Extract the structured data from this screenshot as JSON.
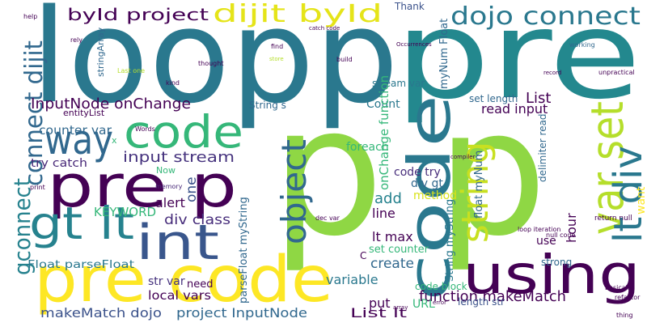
{
  "words": [
    {
      "text": "loopp",
      "color": "#2a788e"
    },
    {
      "text": "pre",
      "color": "#23888e"
    },
    {
      "text": "p",
      "color": "#8fd744"
    },
    {
      "text": "p",
      "color": "#8fd744"
    },
    {
      "text": "code",
      "color": "#2a788e"
    },
    {
      "text": "pre code",
      "color": "#fde725"
    },
    {
      "text": "pre p",
      "color": "#440154"
    },
    {
      "text": "using",
      "color": "#440154"
    },
    {
      "text": "int",
      "color": "#39568c"
    },
    {
      "text": "code",
      "color": "#35b779"
    },
    {
      "text": "way",
      "color": "#31688e"
    },
    {
      "text": "gt lt",
      "color": "#26828e"
    },
    {
      "text": "var set",
      "color": "#b5de2b"
    },
    {
      "text": "lt div",
      "color": "#2a788e"
    },
    {
      "text": "object",
      "color": "#31688e"
    },
    {
      "text": "string",
      "color": "#c8e020"
    },
    {
      "text": "dojo connect",
      "color": "#2a788e"
    },
    {
      "text": "dijit byId",
      "color": "#e5e419"
    },
    {
      "text": "byId project",
      "color": "#440154"
    },
    {
      "text": "connect dijit",
      "color": "#31688e"
    },
    {
      "text": "gconnect",
      "color": "#26828e"
    },
    {
      "text": "InputNode onChange",
      "color": "#440154"
    },
    {
      "text": "input stream",
      "color": "#46337e"
    },
    {
      "text": "function makeMatch",
      "color": "#440154"
    },
    {
      "text": "makeMatch dojo",
      "color": "#3b528b"
    },
    {
      "text": "project InputNode",
      "color": "#31688e"
    },
    {
      "text": "List lt",
      "color": "#440154"
    },
    {
      "text": "URL",
      "color": "#35b779"
    },
    {
      "text": "KEYWORD",
      "color": "#35b779"
    },
    {
      "text": "div class",
      "color": "#472d7b"
    },
    {
      "text": "alert",
      "color": "#440154"
    },
    {
      "text": "one",
      "color": "#3b528b"
    },
    {
      "text": "Float parseFloat",
      "color": "#2a788e"
    },
    {
      "text": "str var",
      "color": "#46327e"
    },
    {
      "text": "local vars",
      "color": "#440154"
    },
    {
      "text": "variable",
      "color": "#2a788e"
    },
    {
      "text": "put",
      "color": "#440154"
    },
    {
      "text": "create",
      "color": "#31688e"
    },
    {
      "text": "lt max",
      "color": "#440154"
    },
    {
      "text": "line",
      "color": "#440154"
    },
    {
      "text": "add",
      "color": "#26828e"
    },
    {
      "text": "code try",
      "color": "#472d7b"
    },
    {
      "text": "read input",
      "color": "#440154"
    },
    {
      "text": "List",
      "color": "#440154"
    },
    {
      "text": "counter var",
      "color": "#31688e"
    },
    {
      "text": "try catch",
      "color": "#482878"
    },
    {
      "text": "Count",
      "color": "#2a788e"
    },
    {
      "text": "foreach",
      "color": "#35b779"
    },
    {
      "text": "method",
      "color": "#d8e219"
    },
    {
      "text": "Thank",
      "color": "#3b528b"
    },
    {
      "text": "code block",
      "color": "#35b779"
    },
    {
      "text": "hour",
      "color": "#440154"
    },
    {
      "text": "strong",
      "color": "#31688e"
    },
    {
      "text": "use",
      "color": "#440154"
    },
    {
      "text": "need",
      "color": "#440154"
    },
    {
      "text": "String s",
      "color": "#31688e"
    },
    {
      "text": "Now",
      "color": "#35b779"
    },
    {
      "text": "entityList",
      "color": "#440154"
    },
    {
      "text": "div gt",
      "color": "#31688e"
    },
    {
      "text": "set counter",
      "color": "#35b779"
    },
    {
      "text": "stream var",
      "color": "#2a788e"
    },
    {
      "text": "set length",
      "color": "#31688e"
    },
    {
      "text": "String myString",
      "color": "#2a788e"
    },
    {
      "text": "parseFloat myString",
      "color": "#31688e"
    },
    {
      "text": "length str",
      "color": "#3b528b"
    },
    {
      "text": "want",
      "color": "#fde725"
    },
    {
      "text": "return null",
      "color": "#440154"
    },
    {
      "text": "onChange function",
      "color": "#35b779"
    },
    {
      "text": "myNum Float",
      "color": "#31688e"
    },
    {
      "text": "float myNum",
      "color": "#31688e"
    },
    {
      "text": "delimiter read",
      "color": "#31688e"
    },
    {
      "text": "stringArray",
      "color": "#31688e"
    },
    {
      "text": "memory",
      "color": "#482878"
    },
    {
      "text": "catch code",
      "color": "#440154"
    },
    {
      "text": "Occurrences",
      "color": "#440154"
    },
    {
      "text": "build",
      "color": "#440154"
    },
    {
      "text": "store",
      "color": "#b5de2b"
    },
    {
      "text": "thought",
      "color": "#440154"
    },
    {
      "text": "Last one",
      "color": "#b5de2b"
    },
    {
      "text": "working",
      "color": "#31688e"
    },
    {
      "text": "unpractical",
      "color": "#440154"
    },
    {
      "text": "dec var",
      "color": "#440154"
    },
    {
      "text": "null code",
      "color": "#440154"
    },
    {
      "text": "loop iteration",
      "color": "#440154"
    },
    {
      "text": "array",
      "color": "#440154"
    },
    {
      "text": "Words",
      "color": "#440154"
    },
    {
      "text": "help",
      "color": "#440154"
    },
    {
      "text": "rely",
      "color": "#440154"
    },
    {
      "text": "print",
      "color": "#440154"
    },
    {
      "text": "thing",
      "color": "#440154"
    },
    {
      "text": "refactor",
      "color": "#440154"
    },
    {
      "text": "basically",
      "color": "#440154"
    },
    {
      "text": "x",
      "color": "#35b779"
    },
    {
      "text": "C",
      "color": "#440154"
    },
    {
      "text": "error",
      "color": "#440154"
    },
    {
      "text": "compiler",
      "color": "#440154"
    },
    {
      "text": "record",
      "color": "#440154"
    },
    {
      "text": "kind",
      "color": "#440154"
    },
    {
      "text": "find",
      "color": "#440154"
    }
  ]
}
